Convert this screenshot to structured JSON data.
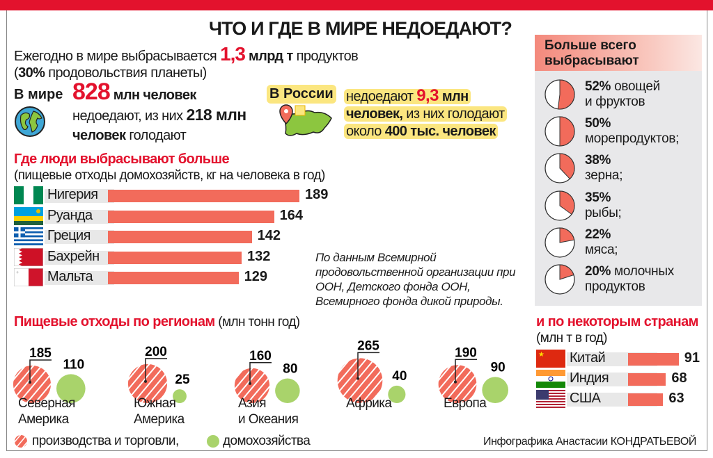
{
  "title": "ЧТО И ГДЕ В МИРЕ НЕДОЕДАЮТ?",
  "intro": {
    "pre": "Ежегодно в мире выбрасывается ",
    "value": "1,3",
    "unit": " млрд т",
    "post": " продуктов",
    "line2_open": "(",
    "line2_pct": "30%",
    "line2_rest": " продовольствия планеты)"
  },
  "world": {
    "label": "В мире",
    "value": "828",
    "unit": " млн человек",
    "line2": "недоедают, из них ",
    "hungry": "218 млн",
    "line3_bold": "человек",
    "line3_rest": " голодают"
  },
  "russia": {
    "label": "В России",
    "l1": "недоедают ",
    "value": "9,3",
    "unit": " млн",
    "l2_bold": "человек,",
    "l2_rest": " из них голодают",
    "l3": "около ",
    "l3_bold": "400 тыс. человек"
  },
  "household": {
    "title": "Где люди выбрасывают больше",
    "subtitle": "(пищевые отходы домохозяйств, кг на человека в год)"
  },
  "source": "По данным Всемирной продовольственной организации при ООН, Детского фонда ООН, Всемирного фонда дикой природы.",
  "right_panel": {
    "title_l1": "Больше всего",
    "title_l2": "выбрасывают"
  },
  "regions": {
    "title": "Пищевые отходы по регионам",
    "unit": " (млн тонн год)",
    "legend_production": "производства и торговли,",
    "legend_household": "домохозяйства"
  },
  "countries": {
    "title": "и по некоторым странам",
    "unit": "(млн т в год)"
  },
  "credit": "Инфографика Анастасии КОНДРАТЬЕВОЙ",
  "colors": {
    "accent": "#e3122d",
    "bar": "#f26b5b",
    "household": "#a9d36b",
    "highlight": "#fbe680"
  },
  "chart_data": [
    {
      "type": "bar",
      "title": "Где люди выбрасывают больше",
      "subtitle": "(пищевые отходы домохозяйств, кг на человека в год)",
      "categories": [
        "Нигерия",
        "Руанда",
        "Греция",
        "Бахрейн",
        "Мальта"
      ],
      "values": [
        189,
        164,
        142,
        132,
        129
      ],
      "labels": [
        "189",
        "164",
        "142",
        "132",
        "129"
      ],
      "orientation": "horizontal"
    },
    {
      "type": "pie",
      "title": "Больше всего выбрасывают",
      "items": [
        {
          "pct": 52,
          "pct_label": "52%",
          "text1": " овощей",
          "text2": "и фруктов"
        },
        {
          "pct": 50,
          "pct_label": "50%",
          "text1": "",
          "text2": "морепродуктов;"
        },
        {
          "pct": 38,
          "pct_label": "38%",
          "text1": "",
          "text2": "зерна;"
        },
        {
          "pct": 35,
          "pct_label": "35%",
          "text1": "",
          "text2": "рыбы;"
        },
        {
          "pct": 22,
          "pct_label": "22%",
          "text1": "",
          "text2": "мяса;"
        },
        {
          "pct": 20,
          "pct_label": "20%",
          "text1": " молочных",
          "text2": "продуктов"
        }
      ]
    },
    {
      "type": "bubble",
      "title": "Пищевые отходы по регионам",
      "unit": "(млн тонн год)",
      "categories": [
        [
          "Северная",
          "Америка"
        ],
        [
          "Южная",
          "Америка"
        ],
        [
          "Азия",
          "и Океания"
        ],
        [
          "Африка"
        ],
        [
          "Европа"
        ]
      ],
      "series": [
        {
          "name": "производства и торговли",
          "values": [
            185,
            200,
            160,
            265,
            190
          ],
          "labels": [
            "185",
            "200",
            "160",
            "265",
            "190"
          ]
        },
        {
          "name": "домохозяйства",
          "values": [
            110,
            25,
            80,
            40,
            90
          ],
          "labels": [
            "110",
            "25",
            "80",
            "40",
            "90"
          ]
        }
      ]
    },
    {
      "type": "bar",
      "title": "и по некоторым странам",
      "subtitle": "(млн т в год)",
      "orientation": "horizontal",
      "categories": [
        "Китай",
        "Индия",
        "США"
      ],
      "values": [
        91,
        68,
        63
      ],
      "labels": [
        "91",
        "68",
        "63"
      ]
    }
  ]
}
